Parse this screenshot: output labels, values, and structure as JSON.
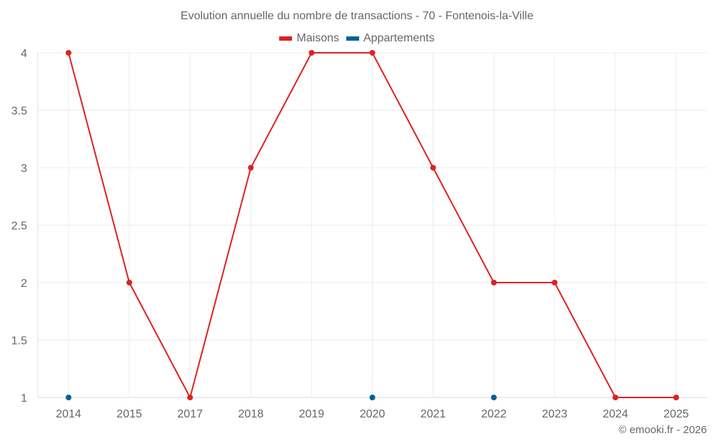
{
  "chart_data": {
    "type": "line",
    "title": "Evolution annuelle du nombre de transactions - 70 - Fontenois-la-Ville",
    "xlabel": "",
    "ylabel": "",
    "categories": [
      "2014",
      "2015",
      "2017",
      "2018",
      "2019",
      "2020",
      "2021",
      "2022",
      "2023",
      "2024",
      "2025"
    ],
    "series": [
      {
        "name": "Maisons",
        "color": "#dd2222",
        "values": [
          4,
          2,
          1,
          3,
          4,
          4,
          3,
          2,
          2,
          1,
          1
        ]
      },
      {
        "name": "Appartements",
        "color": "#006199",
        "values": [
          1,
          null,
          null,
          null,
          null,
          1,
          null,
          1,
          null,
          null,
          null
        ]
      }
    ],
    "yticks": [
      1,
      1.5,
      2,
      2.5,
      3,
      3.5,
      4
    ],
    "ytick_labels": [
      "1",
      "1.5",
      "2",
      "2.5",
      "3",
      "3.5",
      "4"
    ],
    "ylim": [
      1,
      4
    ],
    "grid": true,
    "legend_position": "top"
  },
  "legend": {
    "items": [
      {
        "label": "Maisons",
        "color": "#dd2222"
      },
      {
        "label": "Appartements",
        "color": "#006199"
      }
    ]
  },
  "credit": "© emooki.fr - 2026"
}
